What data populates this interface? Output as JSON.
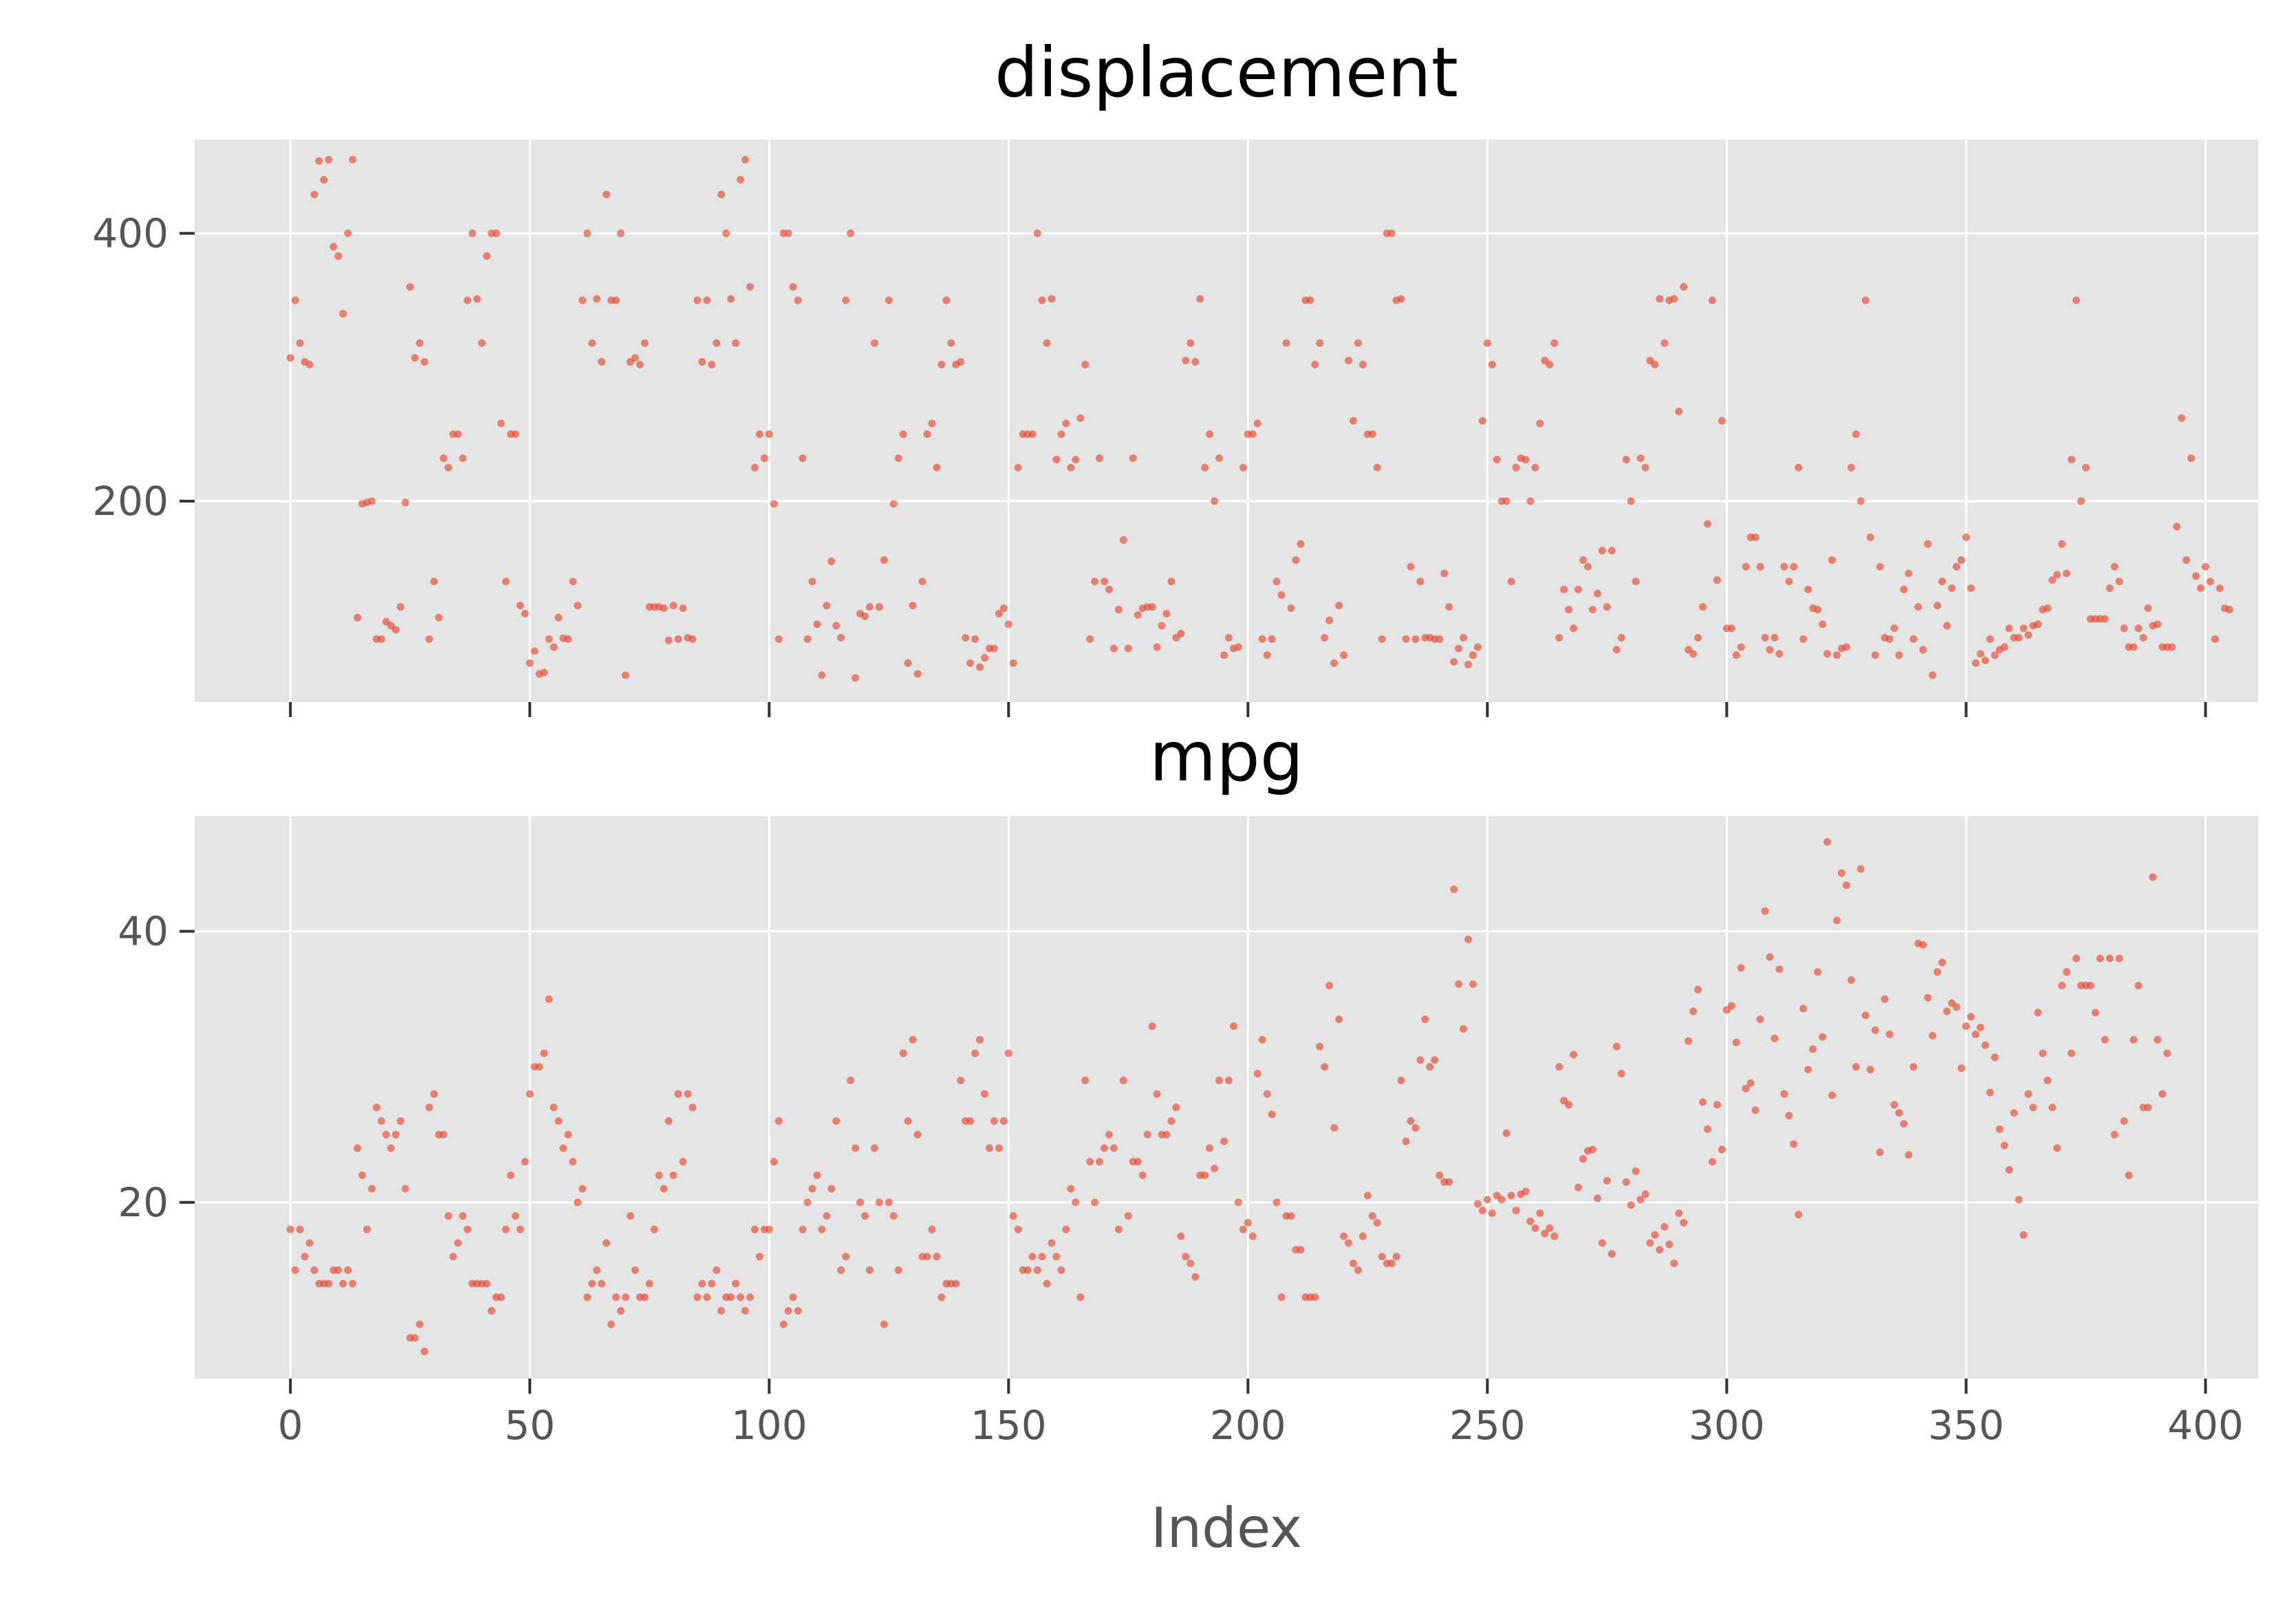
{
  "chart_data": [
    {
      "type": "scatter",
      "title": "displacement",
      "xlabel": "",
      "ylabel": "",
      "xlim": [
        -20,
        411
      ],
      "ylim": [
        50,
        470
      ],
      "xticks": [
        0,
        50,
        100,
        150,
        200,
        250,
        300,
        350,
        400
      ],
      "yticks": [
        200,
        400
      ],
      "x_tick_labels_visible": false,
      "grid": true,
      "color": "#e24a33",
      "y": [
        307,
        350,
        318,
        304,
        302,
        429,
        454,
        440,
        455,
        390,
        383,
        340,
        400,
        455,
        113,
        198,
        199,
        200,
        97,
        97,
        110,
        107,
        104,
        121,
        199,
        360,
        307,
        318,
        304,
        97,
        140,
        113,
        232,
        225,
        250,
        250,
        232,
        350,
        400,
        351,
        318,
        383,
        400,
        400,
        258,
        140,
        250,
        250,
        122,
        116,
        79,
        88,
        71,
        72,
        97,
        91,
        113,
        97.5,
        97,
        140,
        122,
        350,
        400,
        318,
        351,
        304,
        429,
        350,
        350,
        400,
        70,
        304,
        307,
        302,
        318,
        121,
        121,
        121,
        120,
        96,
        122,
        97,
        120,
        98,
        97,
        350,
        304,
        350,
        302,
        318,
        429,
        400,
        351,
        318,
        440,
        455,
        360,
        225,
        250,
        232,
        250,
        198,
        97,
        400,
        400,
        360,
        350,
        232,
        97,
        140,
        108,
        70,
        122,
        155,
        107,
        98,
        350,
        400,
        68,
        116,
        114,
        121,
        318,
        121,
        156,
        350,
        198,
        232,
        250,
        79,
        122,
        71,
        140,
        250,
        258,
        225,
        302,
        350,
        318,
        302,
        304,
        98,
        79,
        97,
        76,
        83,
        90,
        90,
        116,
        120,
        108,
        79,
        225,
        250,
        250,
        250,
        400,
        350,
        318,
        351,
        231,
        250,
        258,
        225,
        231,
        262,
        302,
        97,
        140,
        232,
        140,
        134,
        90,
        119,
        171,
        90,
        232,
        115,
        120,
        121,
        121,
        91,
        107,
        116,
        140,
        98,
        101,
        305,
        318,
        304,
        351,
        225,
        250,
        200,
        232,
        85,
        98,
        90,
        91,
        225,
        250,
        250,
        258,
        97,
        85,
        97,
        140,
        130,
        318,
        120,
        156,
        168,
        350,
        350,
        302,
        318,
        98,
        111,
        79,
        122,
        85,
        305,
        260,
        318,
        302,
        250,
        250,
        225,
        97,
        400,
        400,
        350,
        351,
        97,
        151,
        97,
        140,
        98,
        98,
        97,
        97,
        146,
        121,
        80,
        90,
        98,
        78,
        85,
        91,
        260,
        318,
        302,
        231,
        200,
        200,
        140,
        225,
        232,
        231,
        200,
        225,
        258,
        305,
        302,
        318,
        98,
        134,
        119,
        105,
        134,
        156,
        151,
        119,
        131,
        163,
        121,
        163,
        89,
        98,
        231,
        200,
        140,
        232,
        225,
        305,
        302,
        351,
        318,
        350,
        351,
        267,
        360,
        89,
        86,
        98,
        121,
        183,
        350,
        141,
        260,
        105,
        105,
        85,
        91,
        151,
        173,
        173,
        151,
        98,
        89,
        98,
        86,
        151,
        140,
        151,
        225,
        97,
        134,
        120,
        119,
        108,
        86,
        156,
        85,
        90,
        91,
        225,
        250,
        200,
        350,
        173,
        85,
        151,
        98,
        97,
        105,
        85,
        134,
        146,
        97,
        121,
        89,
        168,
        70,
        122,
        140,
        107,
        135,
        151,
        156,
        173,
        135,
        79,
        86,
        81,
        97,
        85,
        89,
        91,
        105,
        98,
        98,
        105,
        100,
        107,
        108,
        119,
        120,
        141,
        145,
        168,
        146,
        231,
        350,
        200,
        225,
        112,
        112,
        112,
        112,
        135,
        151,
        140,
        105,
        91,
        91,
        105,
        98,
        120,
        107,
        108,
        91,
        91,
        91,
        181,
        262,
        156,
        232,
        144,
        135,
        151,
        140,
        97,
        135,
        120,
        119
      ]
    },
    {
      "type": "scatter",
      "title": "mpg",
      "xlabel": "Index",
      "ylabel": "",
      "xlim": [
        -20,
        411
      ],
      "ylim": [
        7,
        48.5
      ],
      "xticks": [
        0,
        50,
        100,
        150,
        200,
        250,
        300,
        350,
        400
      ],
      "xtick_labels": [
        "0",
        "50",
        "100",
        "150",
        "200",
        "250",
        "300",
        "350",
        "400"
      ],
      "yticks": [
        20,
        40
      ],
      "grid": true,
      "color": "#e24a33",
      "y": [
        18,
        15,
        18,
        16,
        17,
        15,
        14,
        14,
        14,
        15,
        15,
        14,
        15,
        14,
        24,
        22,
        18,
        21,
        27,
        26,
        25,
        24,
        25,
        26,
        21,
        10,
        10,
        11,
        9,
        27,
        28,
        25,
        25,
        19,
        16,
        17,
        19,
        18,
        14,
        14,
        14,
        14,
        12,
        13,
        13,
        18,
        22,
        19,
        18,
        23,
        28,
        30,
        30,
        31,
        35,
        27,
        26,
        24,
        25,
        23,
        20,
        21,
        13,
        14,
        15,
        14,
        17,
        11,
        13,
        12,
        13,
        19,
        15,
        13,
        13,
        14,
        18,
        22,
        21,
        26,
        22,
        28,
        23,
        28,
        27,
        13,
        14,
        13,
        14,
        15,
        12,
        13,
        13,
        14,
        13,
        12,
        13,
        18,
        16,
        18,
        18,
        23,
        26,
        11,
        12,
        13,
        12,
        18,
        20,
        21,
        22,
        18,
        19,
        21,
        26,
        15,
        16,
        29,
        24,
        20,
        19,
        15,
        24,
        20,
        11,
        20,
        19,
        15,
        31,
        26,
        32,
        25,
        16,
        16,
        18,
        16,
        13,
        14,
        14,
        14,
        29,
        26,
        26,
        31,
        32,
        28,
        24,
        26,
        24,
        26,
        31,
        19,
        18,
        15,
        15,
        16,
        15,
        16,
        14,
        17,
        16,
        15,
        18,
        21,
        20,
        13,
        29,
        23,
        20,
        23,
        24,
        25,
        24,
        18,
        29,
        19,
        23,
        23,
        22,
        25,
        33,
        28,
        25,
        25,
        26,
        27,
        17.5,
        16,
        15.5,
        14.5,
        22,
        22,
        24,
        22.5,
        29,
        24.5,
        29,
        33,
        20,
        18,
        18.5,
        17.5,
        29.5,
        32,
        28,
        26.5,
        20,
        13,
        19,
        19,
        16.5,
        16.5,
        13,
        13,
        13,
        31.5,
        30,
        36,
        25.5,
        33.5,
        17.5,
        17,
        15.5,
        15,
        17.5,
        20.5,
        19,
        18.5,
        16,
        15.5,
        15.5,
        16,
        29,
        24.5,
        26,
        25.5,
        30.5,
        33.5,
        30,
        30.5,
        22,
        21.5,
        21.5,
        43.1,
        36.1,
        32.8,
        39.4,
        36.1,
        19.9,
        19.4,
        20.2,
        19.2,
        20.5,
        20.2,
        25.1,
        20.5,
        19.4,
        20.6,
        20.8,
        18.6,
        18.1,
        19.2,
        17.7,
        18.1,
        17.5,
        30,
        27.5,
        27.2,
        30.9,
        21.1,
        23.2,
        23.8,
        23.9,
        20.3,
        17,
        21.6,
        16.2,
        31.5,
        29.5,
        21.5,
        19.8,
        22.3,
        20.2,
        20.6,
        17,
        17.6,
        16.5,
        18.2,
        16.9,
        15.5,
        19.2,
        18.5,
        31.9,
        34.1,
        35.7,
        27.4,
        25.4,
        23,
        27.2,
        23.9,
        34.2,
        34.5,
        31.8,
        37.3,
        28.4,
        28.8,
        26.8,
        33.5,
        41.5,
        38.1,
        32.1,
        37.2,
        28,
        26.4,
        24.3,
        19.1,
        34.3,
        29.8,
        31.3,
        37,
        32.2,
        46.6,
        27.9,
        40.8,
        44.3,
        43.4,
        36.4,
        30,
        44.6,
        33.8,
        29.8,
        32.7,
        23.7,
        35,
        32.4,
        27.2,
        26.6,
        25.8,
        23.5,
        30,
        39.1,
        39,
        35.1,
        32.3,
        37,
        37.7,
        34.1,
        34.7,
        34.4,
        29.9,
        33,
        33.7,
        32.4,
        32.9,
        31.6,
        28.1,
        30.7,
        25.4,
        24.2,
        22.4,
        26.6,
        20.2,
        17.6,
        28,
        27,
        34,
        31,
        29,
        27,
        24,
        36,
        37,
        31,
        38,
        36,
        36,
        36,
        34,
        38,
        32,
        38,
        25,
        38,
        26,
        22,
        32,
        36,
        27,
        27,
        44,
        32,
        28,
        31
      ]
    }
  ]
}
